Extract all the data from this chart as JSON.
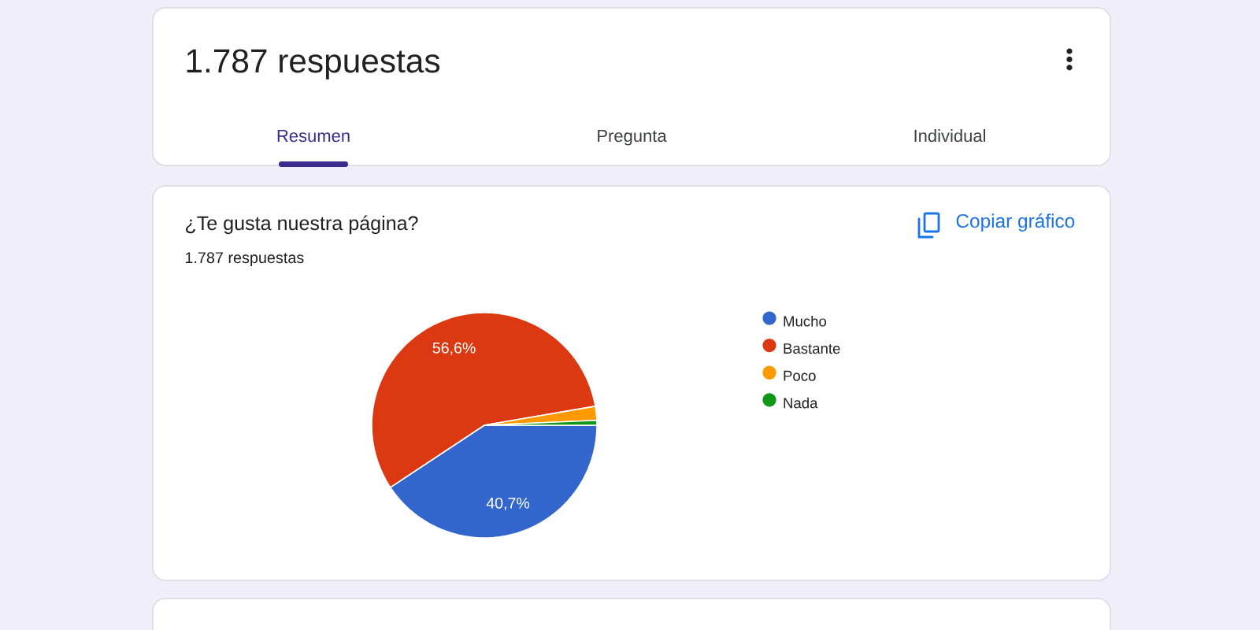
{
  "chart_data": {
    "type": "pie",
    "title": "¿Te gusta nuestra página?",
    "subtitle": "1.787 respuestas",
    "categories": [
      "Mucho",
      "Bastante",
      "Poco",
      "Nada"
    ],
    "values": [
      40.7,
      56.6,
      2.0,
      0.7
    ],
    "colors": [
      "#3366cc",
      "#dc3912",
      "#ff9900",
      "#109618"
    ],
    "value_labels": [
      "40,7%",
      "56,6%",
      null,
      null
    ],
    "legend": "right",
    "annotations": [
      "1.787 respuestas",
      "Resumen",
      "Pregunta",
      "Individual",
      "Copiar gráfico"
    ]
  }
}
